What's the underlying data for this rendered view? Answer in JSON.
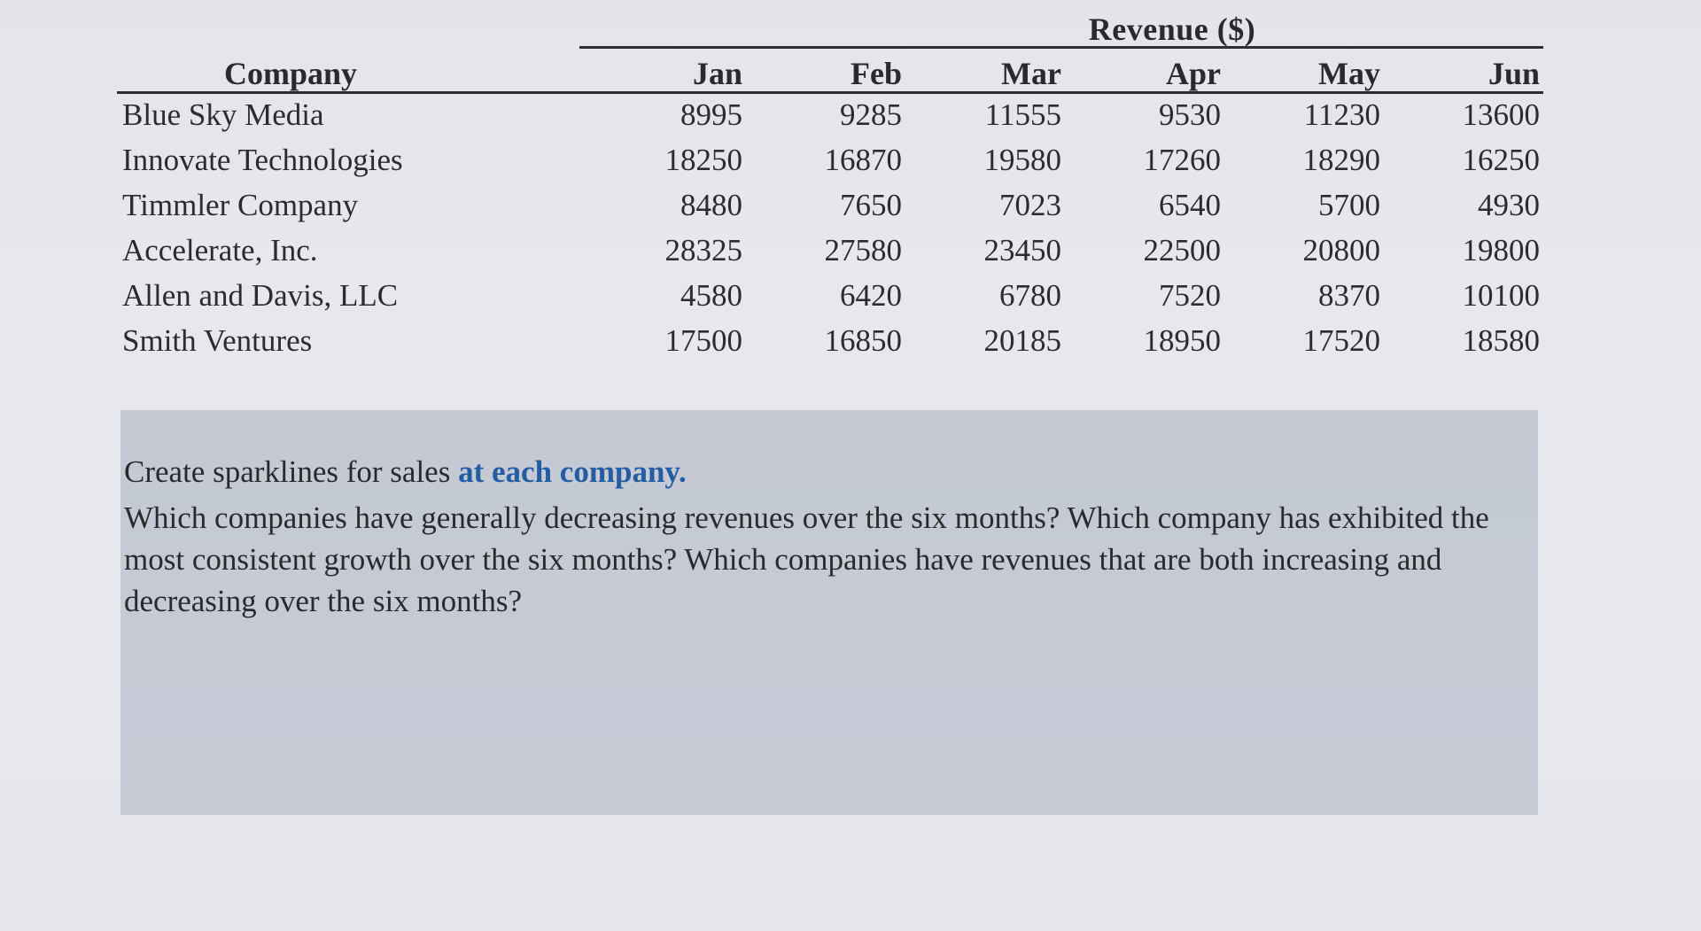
{
  "table": {
    "group_header": "Revenue ($)",
    "company_header": "Company",
    "months": [
      "Jan",
      "Feb",
      "Mar",
      "Apr",
      "May",
      "Jun"
    ],
    "rows": [
      {
        "company": "Blue Sky Media",
        "values": [
          "8995",
          "9285",
          "11555",
          "9530",
          "11230",
          "13600"
        ]
      },
      {
        "company": "Innovate Technologies",
        "values": [
          "18250",
          "16870",
          "19580",
          "17260",
          "18290",
          "16250"
        ]
      },
      {
        "company": "Timmler Company",
        "values": [
          "8480",
          "7650",
          "7023",
          "6540",
          "5700",
          "4930"
        ]
      },
      {
        "company": "Accelerate, Inc.",
        "values": [
          "28325",
          "27580",
          "23450",
          "22500",
          "20800",
          "19800"
        ]
      },
      {
        "company": "Allen and Davis, LLC",
        "values": [
          "4580",
          "6420",
          "6780",
          "7520",
          "8370",
          "10100"
        ]
      },
      {
        "company": "Smith Ventures",
        "values": [
          "17500",
          "16850",
          "20185",
          "18950",
          "17520",
          "18580"
        ]
      }
    ]
  },
  "question": {
    "lead": "Create sparklines for sales ",
    "lead_emphasis": "at each company.",
    "body": "Which companies have generally decreasing revenues over the six months? Which company has exhibited the most consistent growth over the six months? Which companies have revenues that are both increasing and decreasing over the six months?",
    "accent_color": "#245da4"
  }
}
